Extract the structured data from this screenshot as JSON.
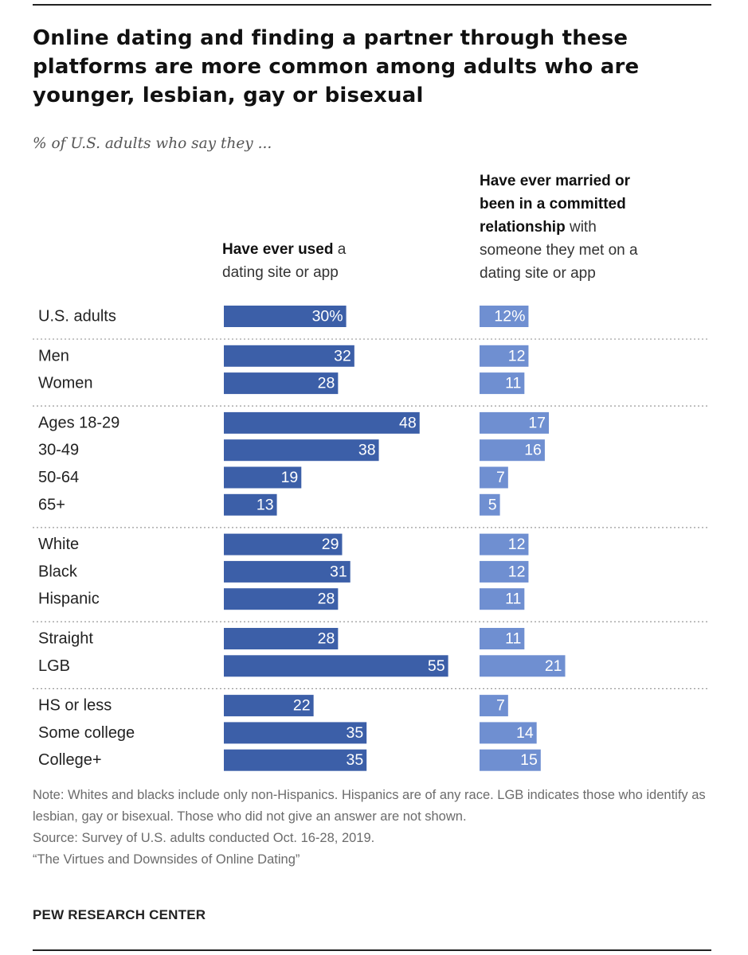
{
  "title": "Online dating and finding a partner through these platforms are more common among adults who are younger, lesbian, gay or bisexual",
  "subtitle": "% of U.S. adults who say they ...",
  "columns": {
    "used": {
      "bold": "Have ever used",
      "rest_line1": " a",
      "line2": "dating site or app"
    },
    "married": {
      "bold_line1": "Have ever married or",
      "bold_line2": "been in a committed",
      "bold_line3": "relationship",
      "rest_line3": " with",
      "line4": "someone they met on a",
      "line5": "dating site or app"
    }
  },
  "colors": {
    "used_bar": "#3c5fa8",
    "married_bar": "#6f8fd1",
    "bar_text": "#ffffff",
    "separator": "#9a9a9a"
  },
  "chart_data": {
    "type": "bar",
    "orientation": "horizontal",
    "value_unit": "%",
    "xlim": [
      0,
      100
    ],
    "categories": [
      "U.S. adults",
      "Men",
      "Women",
      "Ages 18-29",
      "30-49",
      "50-64",
      "65+",
      "White",
      "Black",
      "Hispanic",
      "Straight",
      "LGB",
      "HS or less",
      "Some college",
      "College+"
    ],
    "groups": [
      {
        "rows": [
          0
        ]
      },
      {
        "rows": [
          1,
          2
        ]
      },
      {
        "rows": [
          3,
          4,
          5,
          6
        ]
      },
      {
        "rows": [
          7,
          8,
          9
        ]
      },
      {
        "rows": [
          10,
          11
        ]
      },
      {
        "rows": [
          12,
          13,
          14
        ]
      }
    ],
    "series": [
      {
        "values": [
          30,
          32,
          28,
          48,
          38,
          19,
          13,
          29,
          31,
          28,
          28,
          55,
          22,
          35,
          35
        ]
      },
      {
        "values": [
          12,
          12,
          11,
          17,
          16,
          7,
          5,
          12,
          12,
          11,
          11,
          21,
          7,
          14,
          15
        ]
      }
    ],
    "first_label_suffix": "%"
  },
  "notes": {
    "note": "Note: Whites and blacks include only non-Hispanics. Hispanics are of any race. LGB indicates those who identify as lesbian, gay or bisexual. Those who did not give an answer are not shown.",
    "source": "Source: Survey of U.S. adults conducted Oct. 16-28, 2019.",
    "report": "“The Virtues and Downsides of Online Dating”"
  },
  "brand": "PEW RESEARCH CENTER"
}
